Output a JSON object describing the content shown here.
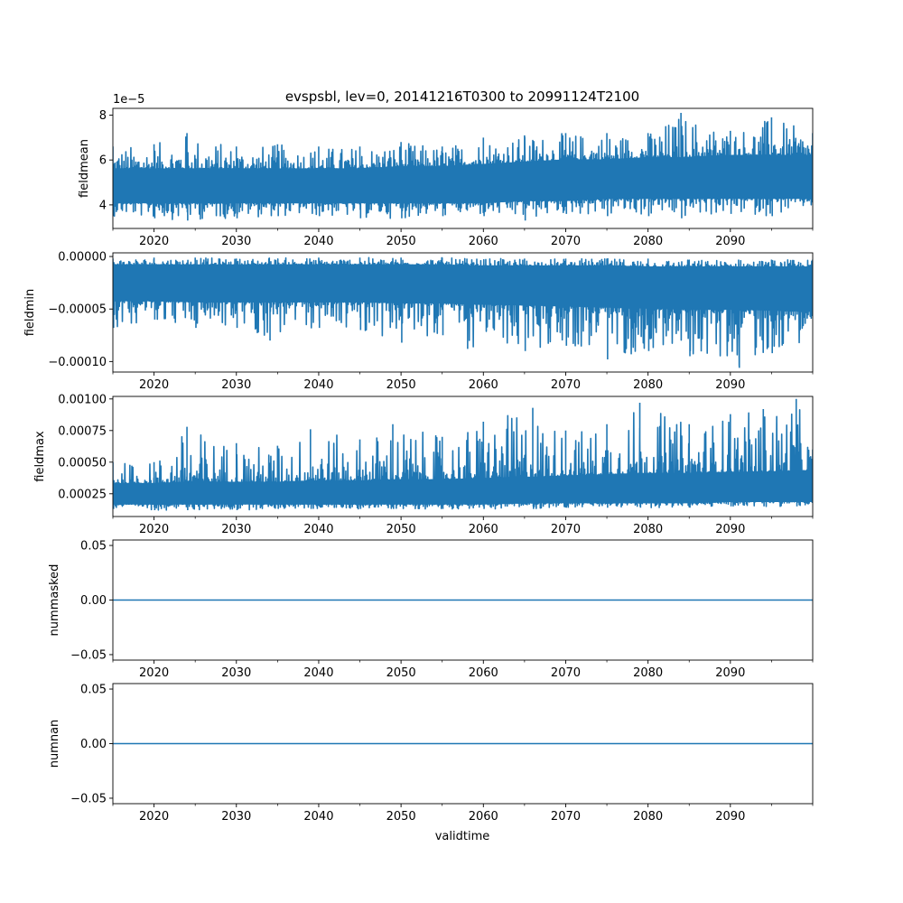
{
  "chart_data": {
    "type": "line",
    "title": "evspsbl, lev=0, 20141216T0300 to 20991124T2100",
    "xlabel": "validtime",
    "xlim": [
      2015.0,
      2100.0
    ],
    "x_major_ticks": [
      2020,
      2030,
      2040,
      2050,
      2060,
      2070,
      2080,
      2090
    ],
    "x_tick_labels": [
      "2020",
      "2030",
      "2040",
      "2050",
      "2060",
      "2070",
      "2080",
      "2090"
    ],
    "x_minor_ticks": [
      2015,
      2025,
      2035,
      2045,
      2055,
      2065,
      2075,
      2085,
      2095,
      2100
    ],
    "series_color": "#1f77b4",
    "grid": false,
    "panels": [
      {
        "ylabel": "fieldmean",
        "offset_text": "1e−5",
        "ylim": [
          2.95,
          8.3
        ],
        "yticks": [
          4,
          6,
          8
        ],
        "ytick_labels": [
          "4",
          "6",
          "8"
        ],
        "x": [
          2015,
          2020,
          2024,
          2030,
          2035,
          2040,
          2045,
          2050,
          2055,
          2060,
          2065,
          2070,
          2075,
          2080,
          2084,
          2090,
          2095,
          2100
        ],
        "upper": [
          6.6,
          6.7,
          7.2,
          6.6,
          6.7,
          6.6,
          6.6,
          6.8,
          6.6,
          7.0,
          7.1,
          7.2,
          7.2,
          7.2,
          8.1,
          7.3,
          7.9,
          7.2
        ],
        "lower": [
          3.5,
          3.4,
          3.3,
          3.4,
          3.5,
          3.5,
          3.4,
          3.4,
          3.5,
          3.5,
          3.3,
          3.6,
          3.5,
          3.5,
          3.4,
          3.6,
          3.5,
          3.9
        ],
        "band_high": [
          5.6,
          5.6,
          5.6,
          5.6,
          5.6,
          5.6,
          5.6,
          5.7,
          5.7,
          5.8,
          5.9,
          6.0,
          6.0,
          6.1,
          6.1,
          6.2,
          6.2,
          6.2
        ],
        "band_low": [
          4.1,
          4.1,
          4.1,
          4.1,
          4.1,
          4.1,
          4.1,
          4.1,
          4.1,
          4.1,
          4.2,
          4.2,
          4.3,
          4.3,
          4.3,
          4.3,
          4.3,
          4.3
        ]
      },
      {
        "ylabel": "fieldmin",
        "offset_text": "",
        "ylim": [
          -0.00011,
          3.5e-06
        ],
        "yticks": [
          0.0,
          -5e-05,
          -0.0001
        ],
        "ytick_labels": [
          "0.00000",
          "−0.00005",
          "−0.00010"
        ],
        "x": [
          2015,
          2020,
          2025,
          2030,
          2034,
          2040,
          2045,
          2050,
          2055,
          2058,
          2065,
          2070,
          2075,
          2080,
          2085,
          2091,
          2095,
          2100
        ],
        "upper": [
          -2e-06,
          -1e-06,
          -1e-06,
          -2e-06,
          -1e-06,
          -1e-06,
          -1e-06,
          -1e-06,
          -1e-06,
          -2e-06,
          -2e-06,
          -2e-06,
          -2e-06,
          -2e-06,
          -3e-06,
          -3e-06,
          -3e-06,
          -3e-06
        ],
        "lower": [
          -6.8e-05,
          -6e-05,
          -6.8e-05,
          -6.8e-05,
          -8e-05,
          -6.8e-05,
          -7e-05,
          -8.2e-05,
          -7.5e-05,
          -8.8e-05,
          -9e-05,
          -8.5e-05,
          -9.8e-05,
          -9e-05,
          -9.5e-05,
          -0.000106,
          -9.2e-05,
          -7.7e-05
        ],
        "band_high": [
          -8e-06,
          -8e-06,
          -8e-06,
          -8e-06,
          -8e-06,
          -8e-06,
          -8e-06,
          -8e-06,
          -8e-06,
          -9e-06,
          -9e-06,
          -9e-06,
          -9e-06,
          -1e-05,
          -1e-05,
          -1e-05,
          -1e-05,
          -1e-05
        ],
        "band_low": [
          -4.2e-05,
          -4.2e-05,
          -4.3e-05,
          -4.3e-05,
          -4.3e-05,
          -4.3e-05,
          -4.3e-05,
          -4.4e-05,
          -4.4e-05,
          -4.5e-05,
          -4.6e-05,
          -4.7e-05,
          -4.8e-05,
          -4.9e-05,
          -5e-05,
          -5e-05,
          -5.1e-05,
          -5.2e-05
        ]
      },
      {
        "ylabel": "fieldmax",
        "offset_text": "",
        "ylim": [
          7e-05,
          0.00102
        ],
        "yticks": [
          0.00025,
          0.0005,
          0.00075,
          0.001
        ],
        "ytick_labels": [
          "0.00025",
          "0.00050",
          "0.00075",
          "0.00100"
        ],
        "x": [
          2015,
          2020,
          2024,
          2030,
          2035,
          2039,
          2045,
          2049,
          2055,
          2060,
          2066,
          2070,
          2075,
          2079,
          2085,
          2090,
          2094,
          2098,
          2100
        ],
        "upper": [
          0.0005,
          0.0005,
          0.00078,
          0.00065,
          0.00063,
          0.00076,
          0.00068,
          0.0008,
          0.0007,
          0.00082,
          0.00093,
          0.00075,
          0.0008,
          0.00097,
          0.0008,
          0.00088,
          0.00092,
          0.001,
          0.0006
        ],
        "lower": [
          0.00013,
          0.00012,
          0.00012,
          0.00012,
          0.00013,
          0.00013,
          0.00013,
          0.00013,
          0.00013,
          0.00013,
          0.00013,
          0.00014,
          0.00014,
          0.00014,
          0.00014,
          0.00015,
          0.00015,
          0.00015,
          0.00015
        ],
        "band_high": [
          0.00033,
          0.00033,
          0.00034,
          0.00034,
          0.00034,
          0.00035,
          0.00035,
          0.00036,
          0.00036,
          0.00037,
          0.00038,
          0.00039,
          0.0004,
          0.00041,
          0.00041,
          0.00042,
          0.00042,
          0.00043,
          0.00043
        ],
        "band_low": [
          0.00017,
          0.00017,
          0.00017,
          0.00017,
          0.00017,
          0.00017,
          0.00017,
          0.00017,
          0.00017,
          0.00017,
          0.00018,
          0.00018,
          0.00018,
          0.00018,
          0.00018,
          0.00019,
          0.00019,
          0.00019,
          0.00019
        ]
      },
      {
        "ylabel": "nummasked",
        "offset_text": "",
        "ylim": [
          -0.055,
          0.055
        ],
        "yticks": [
          -0.05,
          0.0,
          0.05
        ],
        "ytick_labels": [
          "−0.05",
          "0.00",
          "0.05"
        ],
        "x": [
          2015,
          2100
        ],
        "values": [
          0,
          0
        ]
      },
      {
        "ylabel": "numnan",
        "offset_text": "",
        "ylim": [
          -0.055,
          0.055
        ],
        "yticks": [
          -0.05,
          0.0,
          0.05
        ],
        "ytick_labels": [
          "−0.05",
          "0.00",
          "0.05"
        ],
        "x": [
          2015,
          2100
        ],
        "values": [
          0,
          0
        ]
      }
    ]
  }
}
